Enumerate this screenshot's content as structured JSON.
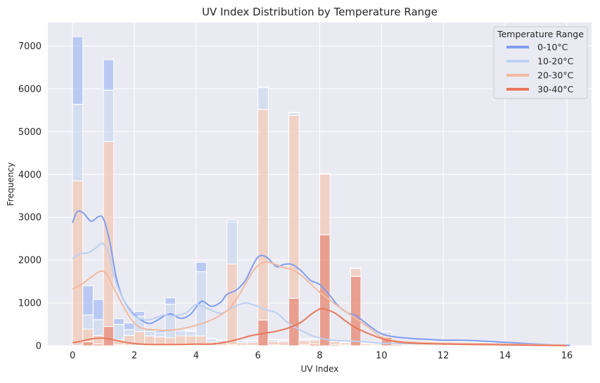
{
  "chart_data": {
    "type": "bar",
    "title": "UV Index Distribution by Temperature Range",
    "xlabel": "UV Index",
    "ylabel": "Frequency",
    "xlim": [
      -0.8,
      16.8
    ],
    "ylim": [
      0,
      7550
    ],
    "xticks": [
      0,
      2,
      4,
      6,
      8,
      10,
      12,
      14,
      16
    ],
    "yticks": [
      0,
      1000,
      2000,
      3000,
      4000,
      5000,
      6000,
      7000
    ],
    "grid": true,
    "stacked": true,
    "bin_width": 0.333,
    "legend": {
      "title": "Temperature Range",
      "position": "top-right"
    },
    "bin_starts": [
      0,
      0.333,
      0.667,
      1.0,
      1.333,
      1.667,
      2.0,
      2.333,
      2.667,
      3.0,
      3.333,
      3.667,
      4.0,
      4.333,
      4.667,
      5.0,
      5.333,
      5.667,
      6.0,
      6.333,
      6.667,
      7.0,
      7.333,
      7.667,
      8.0,
      8.333,
      8.667,
      9.0,
      9.333,
      9.667,
      10.0,
      10.333,
      10.667,
      11.0,
      11.333,
      11.667,
      12.0,
      12.333,
      12.667,
      13.0,
      13.333,
      13.667,
      14.0,
      14.333,
      14.667,
      15.0,
      15.333,
      15.667
    ],
    "series": [
      {
        "name": "30-40°C",
        "color": "#e8826a",
        "values": [
          10,
          90,
          40,
          450,
          20,
          10,
          10,
          10,
          10,
          10,
          10,
          10,
          10,
          10,
          10,
          20,
          10,
          10,
          600,
          20,
          10,
          1110,
          20,
          40,
          2590,
          30,
          20,
          1620,
          10,
          10,
          200,
          30,
          20,
          20,
          20,
          20,
          20,
          20,
          20,
          20,
          20,
          10,
          10,
          10,
          10,
          5,
          5,
          5
        ]
      },
      {
        "name": "20-30°C",
        "color": "#f2c8b4",
        "values": [
          3840,
          300,
          200,
          4320,
          120,
          230,
          320,
          220,
          200,
          180,
          220,
          220,
          220,
          80,
          70,
          1890,
          60,
          70,
          4920,
          80,
          90,
          4270,
          100,
          90,
          1420,
          70,
          50,
          180,
          40,
          30,
          60,
          40,
          40,
          40,
          40,
          40,
          40,
          40,
          40,
          30,
          30,
          20,
          20,
          10,
          10,
          10,
          5,
          5
        ]
      },
      {
        "name": "10-20°C",
        "color": "#ccd9ef",
        "values": [
          1790,
          330,
          370,
          1200,
          360,
          140,
          360,
          110,
          90,
          780,
          120,
          110,
          1500,
          70,
          50,
          980,
          40,
          40,
          510,
          40,
          30,
          60,
          30,
          30,
          10,
          20,
          10,
          10,
          10,
          10,
          60,
          20,
          20,
          20,
          20,
          20,
          20,
          20,
          20,
          20,
          20,
          10,
          10,
          10,
          10,
          5,
          5,
          5
        ]
      },
      {
        "name": "0-10°C",
        "color": "#a7bdf2",
        "values": [
          1580,
          680,
          470,
          710,
          130,
          150,
          110,
          60,
          50,
          150,
          30,
          20,
          220,
          10,
          10,
          40,
          10,
          10,
          20,
          10,
          10,
          10,
          10,
          10,
          10,
          10,
          10,
          10,
          10,
          10,
          10,
          10,
          10,
          10,
          10,
          10,
          10,
          10,
          10,
          10,
          10,
          10,
          10,
          10,
          5,
          5,
          5,
          5
        ]
      }
    ],
    "kde": [
      {
        "name": "0-10°C",
        "color": "#7f9ef2",
        "x": [
          0,
          0.15,
          0.35,
          0.6,
          0.85,
          1.0,
          1.2,
          1.4,
          1.6,
          1.9,
          2.2,
          2.5,
          2.8,
          3.0,
          3.2,
          3.5,
          3.8,
          4.0,
          4.2,
          4.5,
          4.8,
          5.0,
          5.3,
          5.6,
          5.85,
          6.05,
          6.3,
          6.6,
          6.85,
          7.1,
          7.4,
          7.7,
          8.0,
          8.3,
          8.6,
          8.9,
          9.2,
          9.6,
          10.0,
          10.5,
          11.0,
          11.5,
          12.0,
          12.5,
          13.0,
          13.5,
          14.0,
          14.5,
          15.0,
          15.5,
          16.0,
          16.1
        ],
        "y": [
          2870,
          3130,
          3100,
          2910,
          3020,
          2960,
          2450,
          1650,
          1150,
          800,
          610,
          520,
          620,
          710,
          740,
          640,
          720,
          900,
          1040,
          920,
          1020,
          1200,
          1300,
          1530,
          1900,
          2100,
          2060,
          1850,
          1900,
          1900,
          1750,
          1530,
          1430,
          1200,
          930,
          770,
          690,
          470,
          280,
          200,
          170,
          150,
          130,
          130,
          120,
          100,
          80,
          60,
          40,
          20,
          10,
          5
        ]
      },
      {
        "name": "10-20°C",
        "color": "#bcd0f2",
        "x": [
          0,
          0.25,
          0.5,
          0.75,
          0.95,
          1.15,
          1.4,
          1.7,
          2.0,
          2.4,
          2.8,
          3.0,
          3.3,
          3.7,
          4.0,
          4.4,
          4.8,
          5.2,
          5.6,
          6.0,
          6.3,
          6.6,
          7.0,
          7.4,
          7.8,
          8.2,
          8.6,
          9.0,
          9.5,
          10.0,
          11.0,
          12.0,
          14.0,
          16.0
        ],
        "y": [
          2040,
          2150,
          2170,
          2280,
          2390,
          2200,
          1500,
          1000,
          700,
          600,
          680,
          720,
          700,
          780,
          960,
          860,
          760,
          900,
          1000,
          920,
          830,
          770,
          520,
          360,
          220,
          150,
          120,
          110,
          90,
          60,
          50,
          40,
          30,
          10
        ]
      },
      {
        "name": "20-30°C",
        "color": "#f2b9a0",
        "x": [
          0,
          0.3,
          0.6,
          0.9,
          1.1,
          1.3,
          1.6,
          1.9,
          2.2,
          2.6,
          3.0,
          3.4,
          3.8,
          4.2,
          4.6,
          5.0,
          5.3,
          5.6,
          5.9,
          6.2,
          6.5,
          6.8,
          7.1,
          7.4,
          7.7,
          8.0,
          8.3,
          8.6,
          8.9,
          9.2,
          9.6,
          10.0,
          10.5,
          11.0,
          12.0,
          14.0,
          16.0
        ],
        "y": [
          1320,
          1440,
          1600,
          1740,
          1680,
          1400,
          980,
          620,
          420,
          380,
          360,
          380,
          440,
          520,
          640,
          820,
          1080,
          1450,
          1800,
          1950,
          1920,
          1830,
          1780,
          1650,
          1450,
          1250,
          1080,
          920,
          770,
          620,
          420,
          200,
          110,
          80,
          60,
          40,
          10
        ]
      },
      {
        "name": "30-40°C",
        "color": "#e8785c",
        "x": [
          0,
          0.3,
          0.6,
          0.9,
          1.2,
          1.5,
          1.8,
          2.2,
          2.6,
          3.0,
          3.5,
          4.0,
          4.5,
          5.0,
          5.4,
          5.8,
          6.2,
          6.6,
          7.0,
          7.4,
          7.7,
          8.0,
          8.2,
          8.5,
          8.8,
          9.1,
          9.4,
          9.7,
          10.0,
          10.4,
          11.0,
          12.0,
          13.0,
          14.0,
          15.0,
          16.0
        ],
        "y": [
          70,
          110,
          160,
          180,
          160,
          110,
          70,
          40,
          30,
          30,
          30,
          40,
          40,
          90,
          160,
          240,
          290,
          340,
          420,
          550,
          720,
          860,
          850,
          760,
          600,
          450,
          340,
          250,
          170,
          100,
          60,
          40,
          30,
          20,
          10,
          5
        ]
      }
    ]
  }
}
